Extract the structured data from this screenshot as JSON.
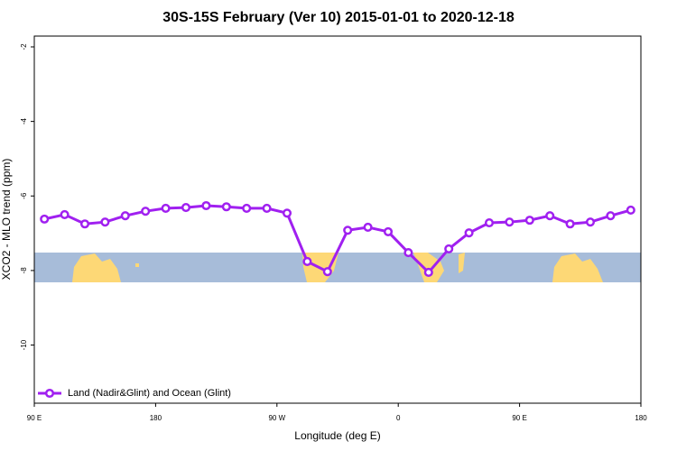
{
  "chart_data": {
    "type": "line",
    "title": "30S-15S February (Ver 10)   2015-01-01 to 2020-12-18",
    "x_label": "Longitude (deg E)",
    "y_label": "XCO2 - MLO trend (ppm)",
    "x": [
      97.5,
      112.5,
      127.5,
      142.5,
      157.5,
      172.5,
      187.5,
      202.5,
      217.5,
      232.5,
      247.5,
      262.5,
      277.5,
      292.5,
      307.5,
      322.5,
      337.5,
      352.5,
      367.5,
      382.5,
      397.5,
      412.5,
      427.5,
      442.5,
      457.5,
      472.5,
      487.5,
      502.5,
      517.5,
      532.5
    ],
    "series": [
      {
        "name": "Land (Nadir&Glint) and Ocean (Glint)",
        "color": "#a020f0",
        "values": [
          -6.62,
          -6.5,
          -6.75,
          -6.7,
          -6.53,
          -6.41,
          -6.33,
          -6.31,
          -6.26,
          -6.29,
          -6.33,
          -6.33,
          -6.46,
          -7.76,
          -8.03,
          -6.92,
          -6.84,
          -6.96,
          -7.52,
          -8.05,
          -7.42,
          -6.99,
          -6.72,
          -6.7,
          -6.65,
          -6.53,
          -6.75,
          -6.7,
          -6.53,
          -6.38
        ]
      }
    ],
    "xlim": [
      90,
      540
    ],
    "xticks": [
      {
        "value": 90,
        "label": "90 E"
      },
      180,
      {
        "value": 270,
        "label": "90 W"
      },
      {
        "value": 360,
        "label": "0"
      },
      {
        "value": 450,
        "label": "90 E"
      },
      {
        "value": 540,
        "label": "180"
      }
    ],
    "ylim": [
      -11.56,
      -1.71
    ],
    "yticks": [
      -2,
      -4,
      -6,
      -8,
      -10
    ],
    "legend": "bottom-left"
  }
}
